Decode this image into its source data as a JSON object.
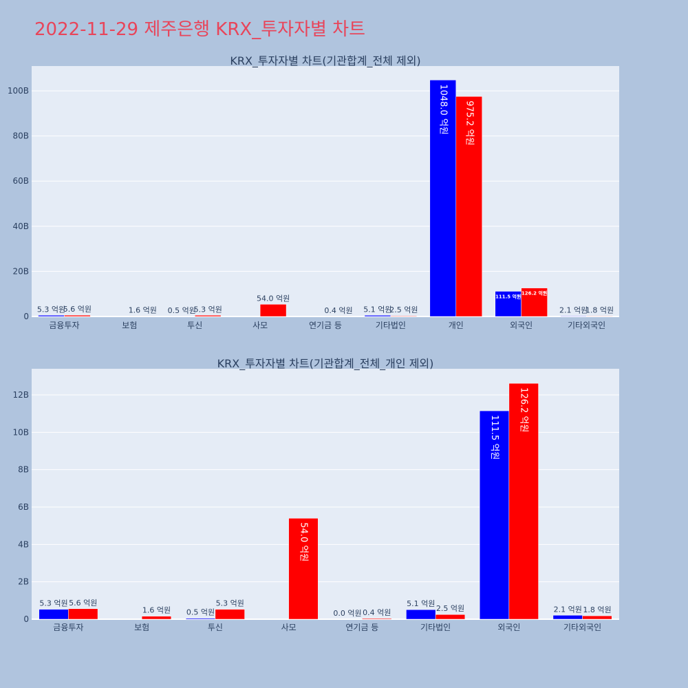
{
  "page_title": "2022-11-29 제주은행 KRX_투자자별 차트",
  "colors": {
    "buy": "#0000ff",
    "sell": "#ff0000",
    "plot_bg": "#e5ecf6",
    "page_bg": "#b0c4de",
    "title": "#e8455a"
  },
  "chart_data": [
    {
      "type": "bar",
      "title": "KRX_투자자별 차트(기관합계_전체 제외)",
      "categories": [
        "금융투자",
        "보험",
        "투신",
        "사모",
        "연기금 등",
        "기타법인",
        "개인",
        "외국인",
        "기타외국인"
      ],
      "series": [
        {
          "values": [
            0.53,
            null,
            0.05,
            null,
            null,
            0.51,
            104.8,
            11.15,
            0.21
          ],
          "labels": [
            "5.3 억원",
            "",
            "0.5 억원",
            "",
            "",
            "5.1 억원",
            "1048.0 억원",
            "111.5 억원",
            "2.1 억원"
          ]
        },
        {
          "values": [
            0.56,
            0.16,
            0.53,
            5.4,
            0.04,
            0.25,
            97.52,
            12.62,
            0.18
          ],
          "labels": [
            "5.6 억원",
            "1.6 억원",
            "5.3 억원",
            "54.0 억원",
            "0.4 억원",
            "2.5 억원",
            "975.2 억원",
            "126.2 억원",
            "1.8 억원"
          ]
        }
      ],
      "ylim": [
        0,
        111
      ],
      "yticks": [
        0,
        20,
        40,
        60,
        80,
        100
      ],
      "ytick_labels": [
        "0",
        "20B",
        "40B",
        "60B",
        "80B",
        "100B"
      ],
      "grid": true
    },
    {
      "type": "bar",
      "title": "KRX_투자자별 차트(기관합계_전체_개인 제외)",
      "categories": [
        "금융투자",
        "보험",
        "투신",
        "사모",
        "연기금 등",
        "기타법인",
        "외국인",
        "기타외국인"
      ],
      "series": [
        {
          "values": [
            0.53,
            null,
            0.05,
            null,
            0.0,
            0.51,
            11.15,
            0.21
          ],
          "labels": [
            "5.3 억원",
            "",
            "0.5 억원",
            "",
            "0.0 억원",
            "5.1 억원",
            "111.5 억원",
            "2.1 억원"
          ]
        },
        {
          "values": [
            0.56,
            0.16,
            0.53,
            5.4,
            0.04,
            0.25,
            12.62,
            0.18
          ],
          "labels": [
            "5.6 억원",
            "1.6 억원",
            "5.3 억원",
            "54.0 억원",
            "0.4 억원",
            "2.5 억원",
            "126.2 억원",
            "1.8 억원"
          ]
        }
      ],
      "ylim": [
        0,
        13.4
      ],
      "yticks": [
        0,
        2,
        4,
        6,
        8,
        10,
        12
      ],
      "ytick_labels": [
        "0",
        "2B",
        "4B",
        "6B",
        "8B",
        "10B",
        "12B"
      ],
      "grid": true
    }
  ]
}
